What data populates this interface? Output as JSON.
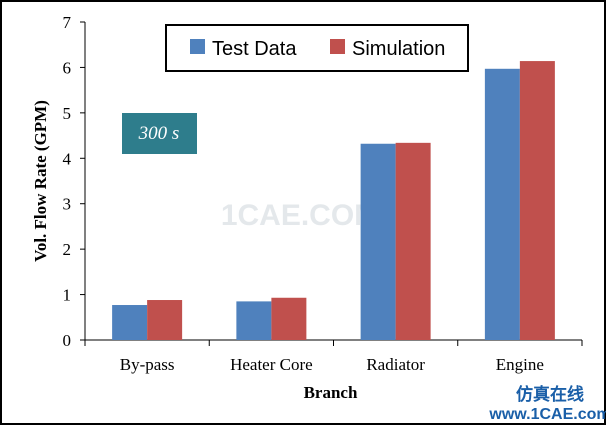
{
  "chart_data": {
    "type": "bar",
    "categories": [
      "By-pass",
      "Heater Core",
      "Radiator",
      "Engine"
    ],
    "series": [
      {
        "name": "Test Data",
        "color": "#4f81bd",
        "values": [
          0.77,
          0.85,
          4.32,
          5.97
        ]
      },
      {
        "name": "Simulation",
        "color": "#c0504d",
        "values": [
          0.88,
          0.93,
          4.34,
          6.14
        ]
      }
    ],
    "title": "",
    "xlabel": "Branch",
    "ylabel": "Vol. Flow Rate (GPM)",
    "ylim": [
      0,
      7
    ],
    "yticks": [
      0,
      1,
      2,
      3,
      4,
      5,
      6,
      7
    ],
    "grid": false,
    "legend_position": "top"
  },
  "annotation": {
    "text": "300 s",
    "background": "#2e7d8c"
  },
  "watermark": {
    "text": "1CAE.COM"
  },
  "branding": {
    "text": "仿真在线",
    "url": "www.1CAE.com"
  },
  "colors": {
    "border": "#000000",
    "accent": "#4f81bd",
    "secondary": "#c0504d"
  }
}
